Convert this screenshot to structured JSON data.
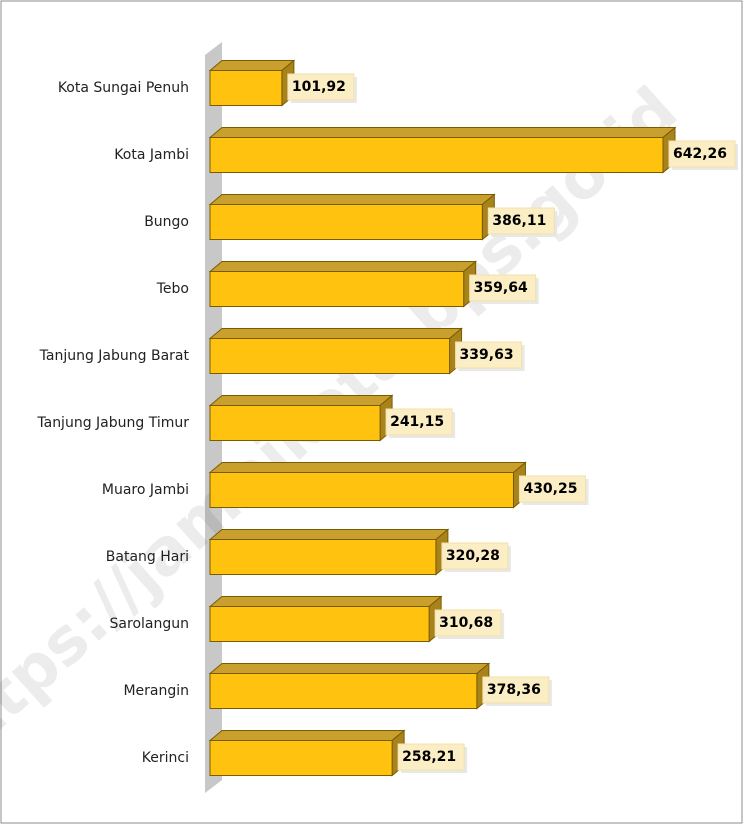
{
  "chart_data": {
    "type": "bar",
    "orientation": "horizontal",
    "categories": [
      "Kota Sungai Penuh",
      "Kota Jambi",
      "Bungo",
      "Tebo",
      "Tanjung Jabung Barat",
      "Tanjung Jabung Timur",
      "Muaro Jambi",
      "Batang Hari",
      "Sarolangun",
      "Merangin",
      "Kerinci"
    ],
    "values": [
      101.92,
      642.26,
      386.11,
      359.64,
      339.63,
      241.15,
      430.25,
      320.28,
      310.68,
      378.36,
      258.21
    ],
    "value_labels": [
      "101,92",
      "642,26",
      "386,11",
      "359,64",
      "339,63",
      "241,15",
      "430,25",
      "320,28",
      "310,68",
      "378,36",
      "258,21"
    ],
    "color": "#ffc20e",
    "watermark": "https://jambikota.bps.go.id"
  }
}
